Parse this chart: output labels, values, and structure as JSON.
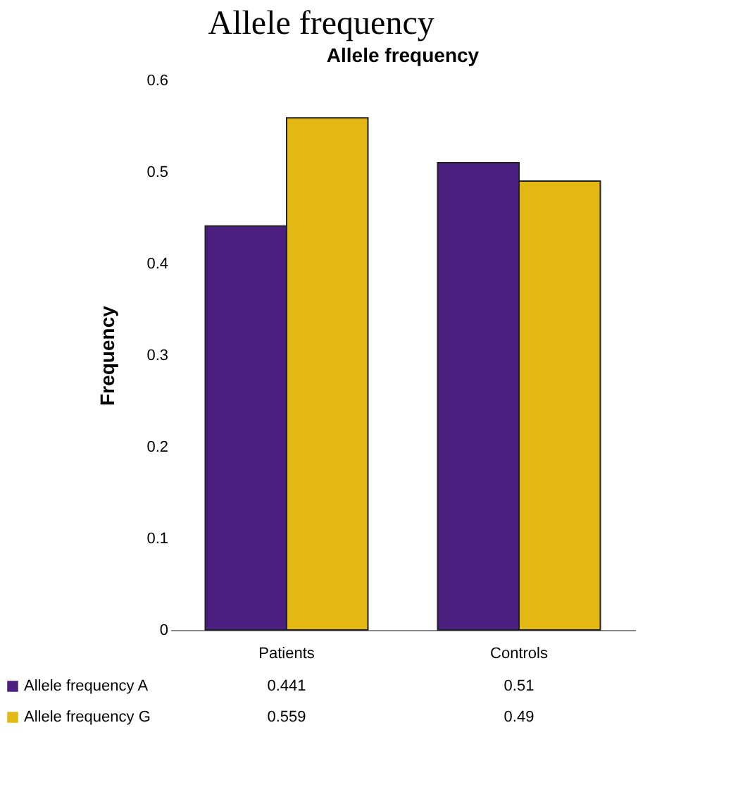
{
  "chart_data": {
    "type": "bar",
    "title": "Allele frequency",
    "subtitle": "Allele frequency",
    "ylabel": "Frequency",
    "categories": [
      "Patients",
      "Controls"
    ],
    "series": [
      {
        "name": "Allele frequency A",
        "color": "#4b1f80",
        "values": [
          0.441,
          0.51
        ]
      },
      {
        "name": "Allele frequency G",
        "color": "#e3b813",
        "values": [
          0.559,
          0.49
        ]
      }
    ],
    "ylim": [
      0,
      0.6
    ],
    "yticks": [
      0,
      0.1,
      0.2,
      0.3,
      0.4,
      0.5,
      0.6
    ],
    "grid": false,
    "legend": "bottom",
    "data_labels": true
  }
}
